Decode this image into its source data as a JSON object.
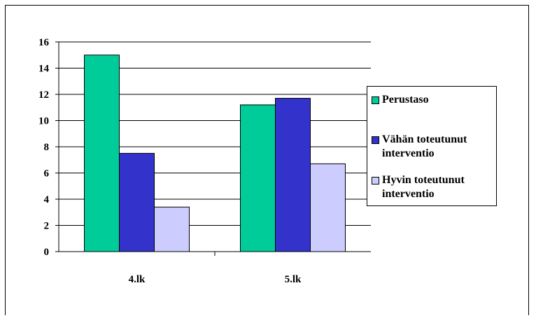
{
  "chart_data": {
    "type": "bar",
    "categories": [
      "4.lk",
      "5.lk"
    ],
    "series": [
      {
        "name": "Perustaso",
        "values": [
          15.0,
          11.2
        ],
        "color": "#00cc99"
      },
      {
        "name": "Vähän toteutunut interventio",
        "values": [
          7.5,
          11.7
        ],
        "color": "#3333cc"
      },
      {
        "name": "Hyvin toteutunut interventio",
        "values": [
          3.4,
          6.7
        ],
        "color": "#ccccff"
      }
    ],
    "yticks": [
      "0",
      "2",
      "4",
      "6",
      "8",
      "10",
      "12",
      "14",
      "16"
    ],
    "ylim": [
      0,
      16
    ],
    "grid": true,
    "legend_position": "right"
  }
}
